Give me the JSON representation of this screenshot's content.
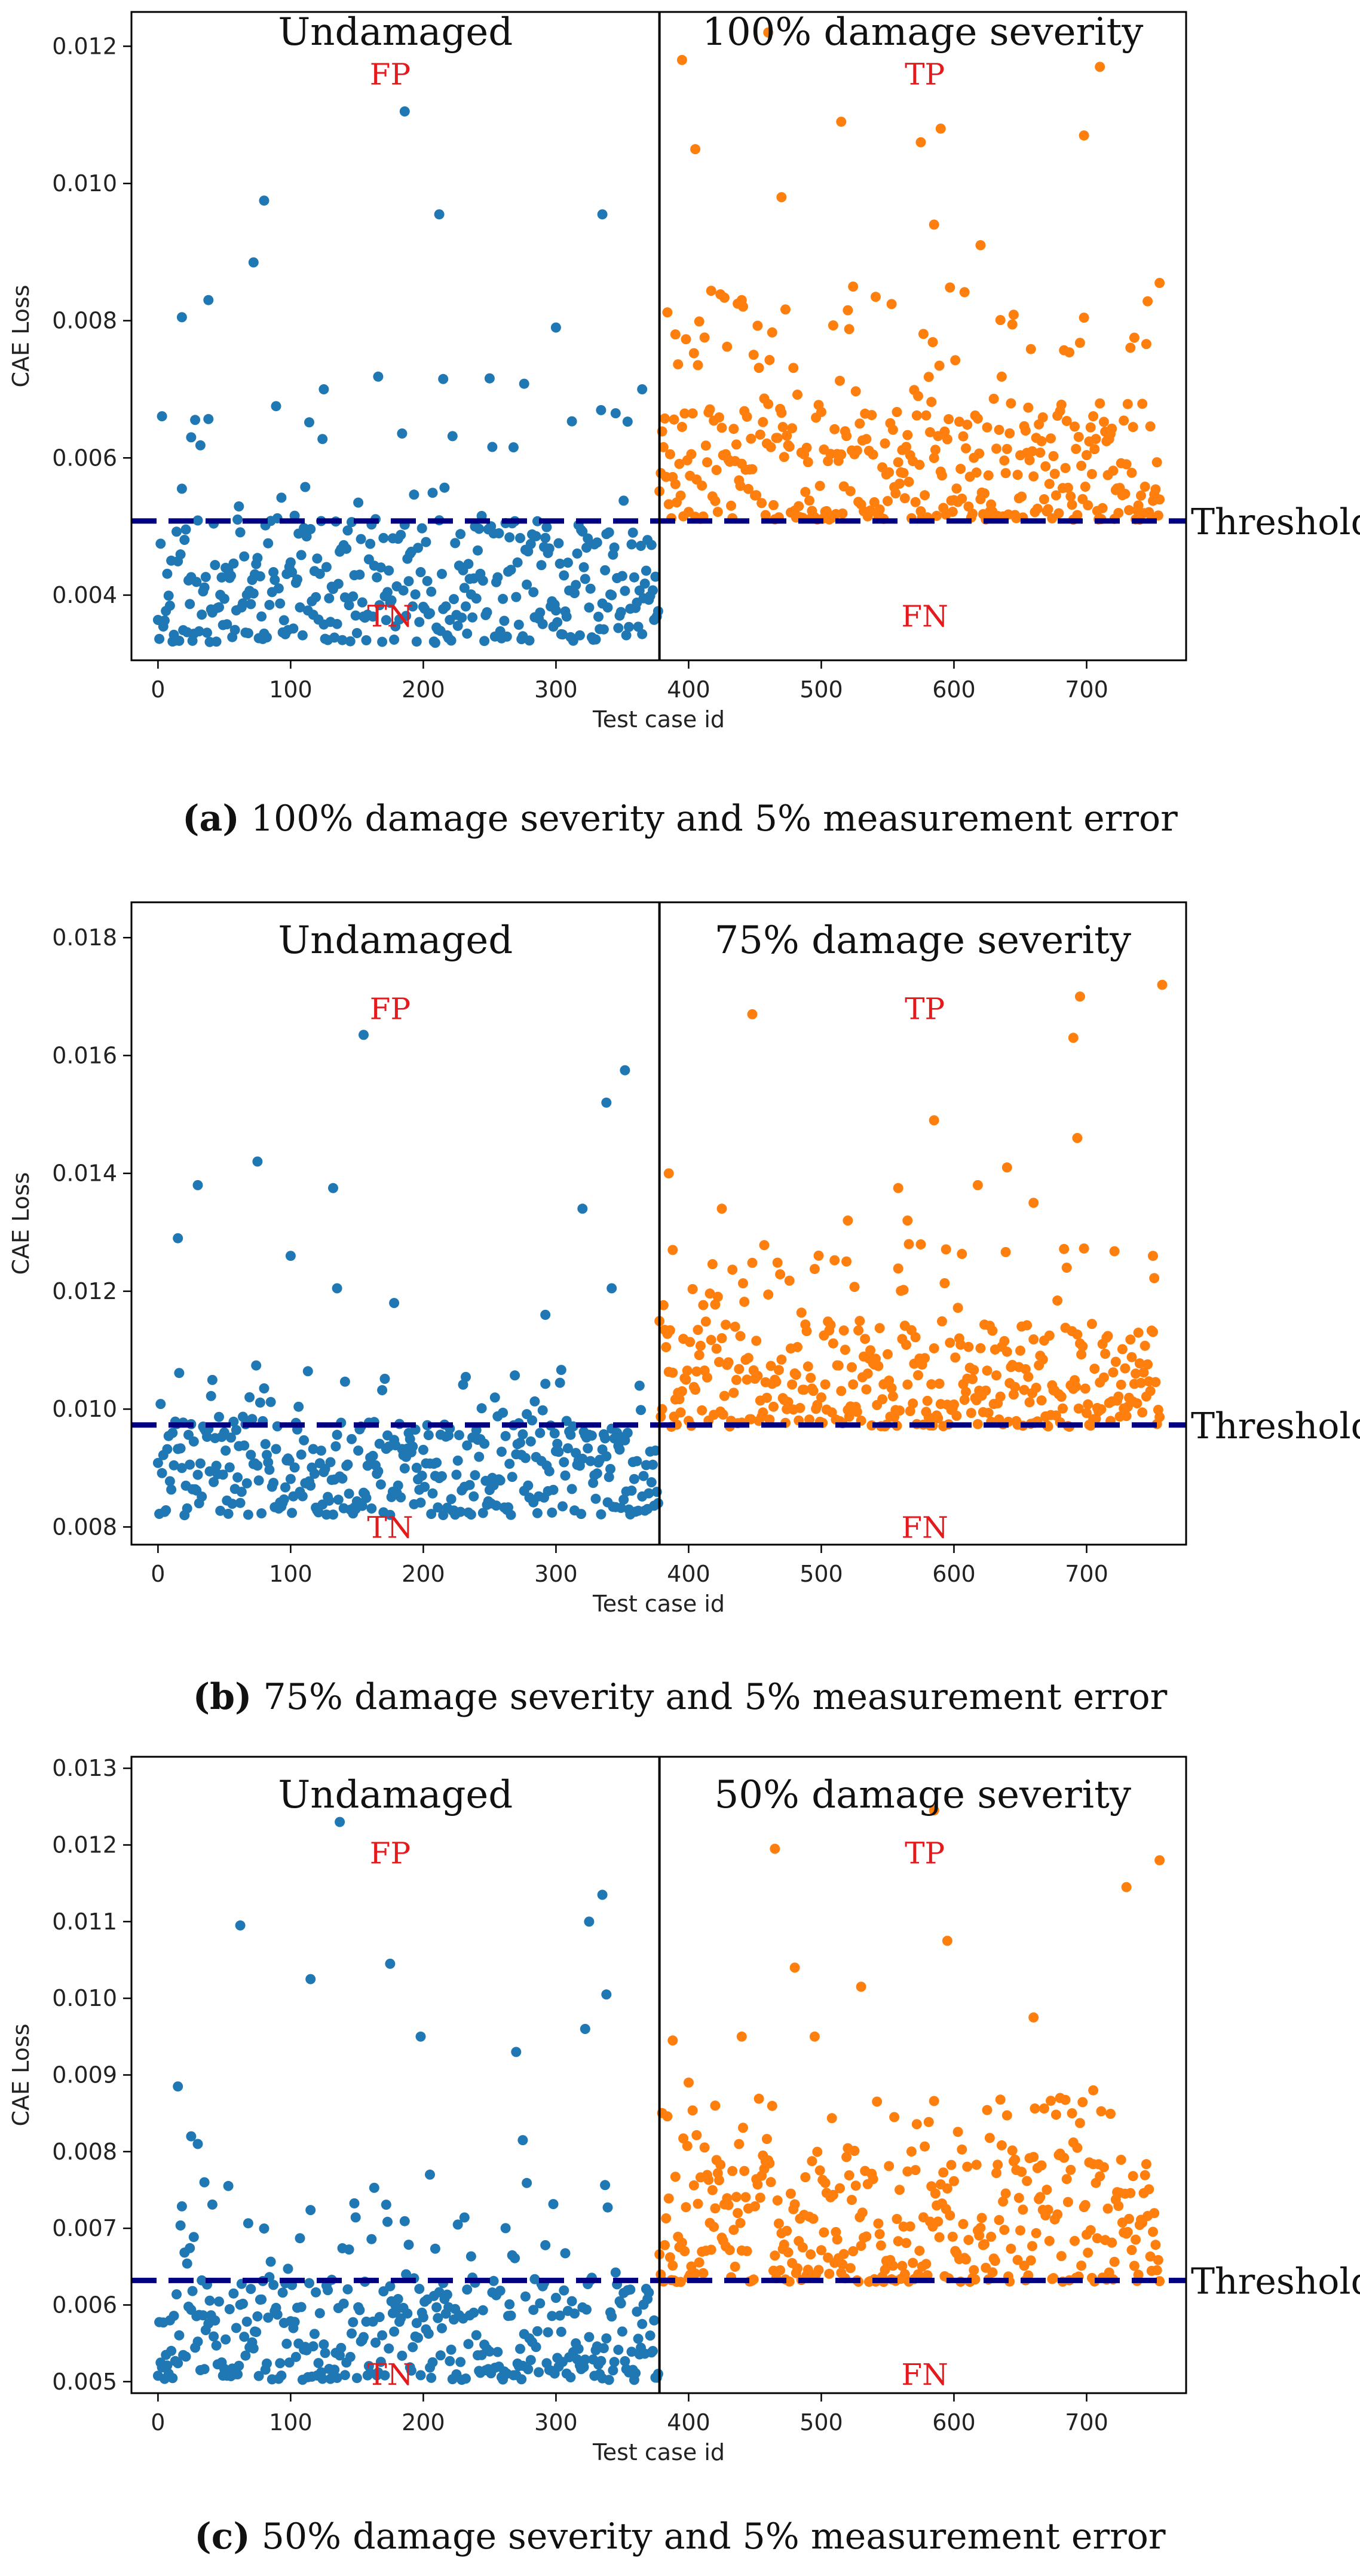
{
  "colors": {
    "undamaged_points": "#1f77b4",
    "damaged_points": "#ff7f0e",
    "threshold_line": "#000080",
    "region_labels": "#e41a1c",
    "axes": "#000000"
  },
  "chart_data": [
    {
      "type": "scatter",
      "panel_id": "a",
      "caption_prefix": "(a)",
      "caption_text": "100% damage severity and 5% measurement error",
      "xlabel": "Test case id",
      "ylabel": "CAE Loss",
      "xlim": [
        -20,
        775
      ],
      "ylim": [
        0.00305,
        0.0125
      ],
      "xticks": [
        0,
        100,
        200,
        300,
        400,
        500,
        600,
        700
      ],
      "xtick_labels": [
        "0",
        "100",
        "200",
        "300",
        "400",
        "500",
        "600",
        "700"
      ],
      "yticks": [
        0.004,
        0.006,
        0.008,
        0.01,
        0.012
      ],
      "ytick_labels": [
        "0.004",
        "0.006",
        "0.008",
        "0.010",
        "0.012"
      ],
      "divider_x": 378,
      "threshold": 0.00508,
      "threshold_label": "Threshold",
      "left_title": "Undamaged",
      "right_title": "100% damage severity",
      "quadrant_labels": {
        "FP": "FP",
        "TP": "TP",
        "TN": "TN",
        "FN": "FN"
      },
      "quadrant_positions": {
        "FP": [
          175,
          0.0116
        ],
        "TP": [
          578,
          0.0116
        ],
        "TN": [
          175,
          0.0037
        ],
        "FN": [
          578,
          0.0037
        ]
      },
      "undamaged": {
        "n": 378,
        "base_min": 0.0033,
        "base_max": 0.0051,
        "skew": 1.3,
        "above_frac": 0.1,
        "above_max": 0.0072,
        "seed": 11
      },
      "damaged": {
        "n": 378,
        "base_min": 0.0051,
        "base_max": 0.0068,
        "skew": 1.4,
        "above_frac": 0.12,
        "above_max": 0.0085,
        "seed": 23
      },
      "undamaged_outliers": [
        [
          18,
          0.00805
        ],
        [
          25,
          0.0063
        ],
        [
          38,
          0.0083
        ],
        [
          72,
          0.00885
        ],
        [
          80,
          0.00975
        ],
        [
          125,
          0.007
        ],
        [
          186,
          0.01105
        ],
        [
          212,
          0.00955
        ],
        [
          215,
          0.00715
        ],
        [
          300,
          0.0079
        ],
        [
          335,
          0.00955
        ],
        [
          365,
          0.007
        ]
      ],
      "damaged_outliers": [
        [
          390,
          0.0078
        ],
        [
          395,
          0.0118
        ],
        [
          405,
          0.0105
        ],
        [
          440,
          0.0083
        ],
        [
          460,
          0.0122
        ],
        [
          470,
          0.0098
        ],
        [
          515,
          0.0109
        ],
        [
          575,
          0.0106
        ],
        [
          585,
          0.0094
        ],
        [
          590,
          0.0108
        ],
        [
          620,
          0.0091
        ],
        [
          698,
          0.0107
        ],
        [
          710,
          0.0117
        ],
        [
          755,
          0.00855
        ]
      ]
    },
    {
      "type": "scatter",
      "panel_id": "b",
      "caption_prefix": "(b)",
      "caption_text": "75% damage severity and 5% measurement error",
      "xlabel": "Test case id",
      "ylabel": "CAE Loss",
      "xlim": [
        -20,
        775
      ],
      "ylim": [
        0.0077,
        0.0186
      ],
      "xticks": [
        0,
        100,
        200,
        300,
        400,
        500,
        600,
        700
      ],
      "xtick_labels": [
        "0",
        "100",
        "200",
        "300",
        "400",
        "500",
        "600",
        "700"
      ],
      "yticks": [
        0.008,
        0.01,
        0.012,
        0.014,
        0.016,
        0.018
      ],
      "ytick_labels": [
        "0.008",
        "0.010",
        "0.012",
        "0.014",
        "0.016",
        "0.018"
      ],
      "divider_x": 378,
      "threshold": 0.00973,
      "threshold_label": "Threshold",
      "left_title": "Undamaged",
      "right_title": "75% damage severity",
      "quadrant_labels": {
        "FP": "FP",
        "TP": "TP",
        "TN": "TN",
        "FN": "FN"
      },
      "quadrant_positions": {
        "FP": [
          175,
          0.0168
        ],
        "TP": [
          578,
          0.0168
        ],
        "TN": [
          175,
          0.008
        ],
        "FN": [
          578,
          0.008
        ]
      },
      "undamaged": {
        "n": 378,
        "base_min": 0.0082,
        "base_max": 0.0098,
        "skew": 1.3,
        "above_frac": 0.08,
        "above_max": 0.0108,
        "seed": 37
      },
      "damaged": {
        "n": 378,
        "base_min": 0.0097,
        "base_max": 0.0115,
        "skew": 1.4,
        "above_frac": 0.12,
        "above_max": 0.0128,
        "seed": 41
      },
      "undamaged_outliers": [
        [
          15,
          0.0129
        ],
        [
          30,
          0.0138
        ],
        [
          75,
          0.0142
        ],
        [
          100,
          0.0126
        ],
        [
          132,
          0.01375
        ],
        [
          135,
          0.01205
        ],
        [
          155,
          0.01635
        ],
        [
          178,
          0.0118
        ],
        [
          292,
          0.0116
        ],
        [
          320,
          0.0134
        ],
        [
          338,
          0.0152
        ],
        [
          342,
          0.01205
        ],
        [
          352,
          0.01575
        ]
      ],
      "damaged_outliers": [
        [
          385,
          0.014
        ],
        [
          388,
          0.0127
        ],
        [
          425,
          0.0134
        ],
        [
          448,
          0.0167
        ],
        [
          520,
          0.0132
        ],
        [
          558,
          0.01375
        ],
        [
          565,
          0.0132
        ],
        [
          585,
          0.0149
        ],
        [
          618,
          0.0138
        ],
        [
          640,
          0.0141
        ],
        [
          660,
          0.0135
        ],
        [
          690,
          0.0163
        ],
        [
          693,
          0.0146
        ],
        [
          695,
          0.017
        ],
        [
          750,
          0.0126
        ],
        [
          757,
          0.0172
        ]
      ]
    },
    {
      "type": "scatter",
      "panel_id": "c",
      "caption_prefix": "(c)",
      "caption_text": "50% damage severity and 5% measurement error",
      "xlabel": "Test case id",
      "ylabel": "CAE Loss",
      "xlim": [
        -20,
        775
      ],
      "ylim": [
        0.00485,
        0.01315
      ],
      "xticks": [
        0,
        100,
        200,
        300,
        400,
        500,
        600,
        700
      ],
      "xtick_labels": [
        "0",
        "100",
        "200",
        "300",
        "400",
        "500",
        "600",
        "700"
      ],
      "yticks": [
        0.005,
        0.006,
        0.007,
        0.008,
        0.009,
        0.01,
        0.011,
        0.012,
        0.013
      ],
      "ytick_labels": [
        "0.005",
        "0.006",
        "0.007",
        "0.008",
        "0.009",
        "0.010",
        "0.011",
        "0.012",
        "0.013"
      ],
      "divider_x": 378,
      "threshold": 0.00632,
      "threshold_label": "Threshold",
      "left_title": "Undamaged",
      "right_title": "50% damage severity",
      "quadrant_labels": {
        "FP": "FP",
        "TP": "TP",
        "TN": "TN",
        "FN": "FN"
      },
      "quadrant_positions": {
        "FP": [
          175,
          0.0119
        ],
        "TP": [
          578,
          0.0119
        ],
        "TN": [
          175,
          0.0051
        ],
        "FN": [
          578,
          0.0051
        ]
      },
      "undamaged": {
        "n": 378,
        "base_min": 0.00502,
        "base_max": 0.0064,
        "skew": 1.3,
        "above_frac": 0.1,
        "above_max": 0.0076,
        "seed": 53
      },
      "damaged": {
        "n": 378,
        "base_min": 0.0063,
        "base_max": 0.008,
        "skew": 1.5,
        "above_frac": 0.1,
        "above_max": 0.0087,
        "seed": 67
      },
      "undamaged_outliers": [
        [
          15,
          0.00885
        ],
        [
          25,
          0.0082
        ],
        [
          30,
          0.0081
        ],
        [
          35,
          0.0076
        ],
        [
          62,
          0.01095
        ],
        [
          115,
          0.01025
        ],
        [
          137,
          0.0123
        ],
        [
          175,
          0.01045
        ],
        [
          198,
          0.0095
        ],
        [
          205,
          0.0077
        ],
        [
          270,
          0.0093
        ],
        [
          275,
          0.00815
        ],
        [
          322,
          0.0096
        ],
        [
          325,
          0.011
        ],
        [
          335,
          0.01135
        ],
        [
          338,
          0.01005
        ]
      ],
      "damaged_outliers": [
        [
          388,
          0.00945
        ],
        [
          400,
          0.0089
        ],
        [
          420,
          0.0086
        ],
        [
          440,
          0.0095
        ],
        [
          465,
          0.01195
        ],
        [
          480,
          0.0104
        ],
        [
          495,
          0.0095
        ],
        [
          530,
          0.01015
        ],
        [
          585,
          0.01245
        ],
        [
          595,
          0.01075
        ],
        [
          660,
          0.00975
        ],
        [
          680,
          0.0087
        ],
        [
          705,
          0.0088
        ],
        [
          730,
          0.01145
        ],
        [
          755,
          0.0118
        ]
      ]
    }
  ]
}
